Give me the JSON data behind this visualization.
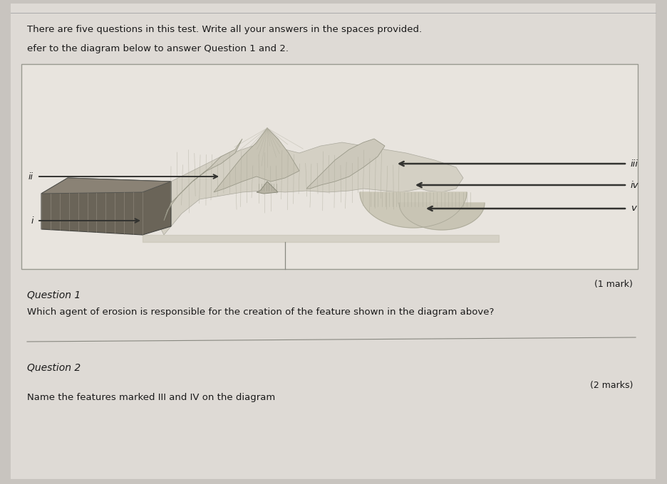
{
  "bg_color": "#c8c4bf",
  "page_bg": "#dedad5",
  "diag_bg": "#e8e4de",
  "title_text": "There are five questions in this test. Write all your answers in the spaces provided.",
  "subtitle_text": "efer to the diagram below to answer Question 1 and 2.",
  "label_i": "i",
  "label_ii": "ii",
  "label_iii": "iii",
  "label_iv": "iv",
  "label_v": "v",
  "q1_mark": "(1 mark)",
  "q1_header": "Question 1",
  "q1_text": "Which agent of erosion is responsible for the creation of the feature shown in the diagram above?",
  "q2_header": "Question 2",
  "q2_mark": "(2 marks)",
  "q2_text": "Name the features marked III and IV on the diagram",
  "text_color": "#1a1a1a",
  "sketch_color": "#555550",
  "arrow_color": "#333330",
  "line_color": "#888880"
}
